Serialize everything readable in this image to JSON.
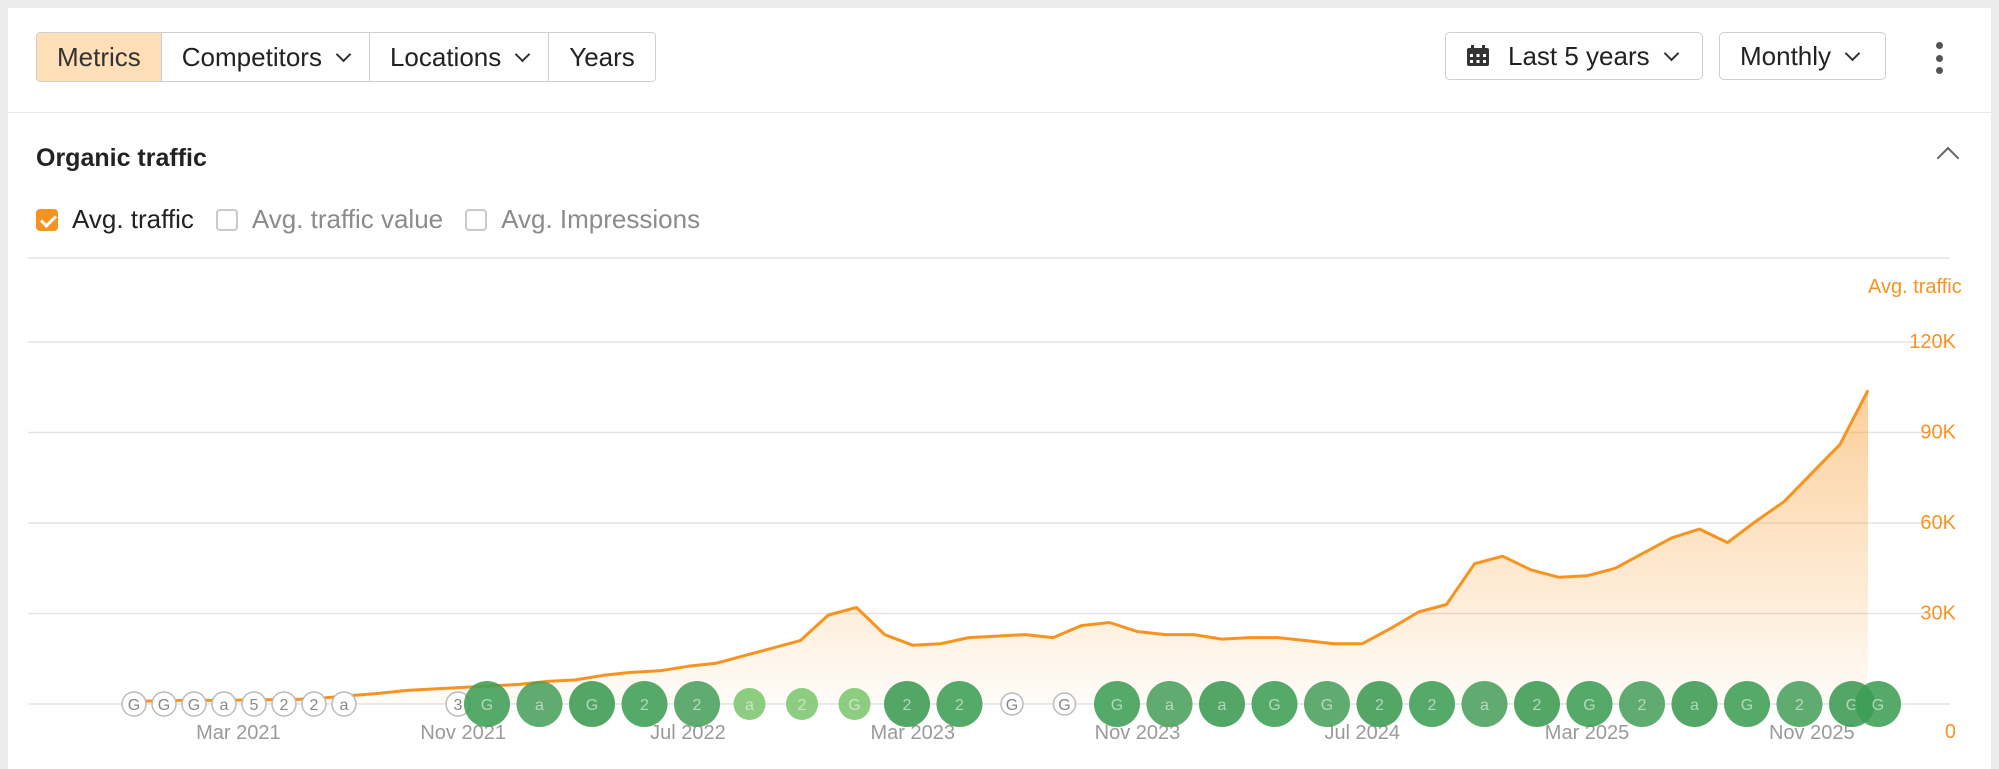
{
  "toolbar": {
    "tabs": [
      {
        "label": "Metrics",
        "active": true
      },
      {
        "label": "Competitors",
        "dropdown": true
      },
      {
        "label": "Locations",
        "dropdown": true
      },
      {
        "label": "Years",
        "dropdown": false
      }
    ],
    "range_label": "Last 5 years",
    "interval_label": "Monthly",
    "range_icon": "calendar-icon",
    "more_icon": "kebab-menu-icon"
  },
  "card": {
    "title": "Organic traffic",
    "collapse_icon": "chevron-up-icon",
    "metrics": [
      {
        "label": "Avg. traffic",
        "checked": true
      },
      {
        "label": "Avg. traffic value",
        "checked": false
      },
      {
        "label": "Avg. Impressions",
        "checked": false
      }
    ]
  },
  "colors": {
    "accent": "#f7931e",
    "active_tab": "#fedfb8",
    "marker_green": "#3e9e55",
    "marker_light_green": "#7cc66f"
  },
  "chart_data": {
    "type": "area",
    "ylabel": "Avg. traffic",
    "ylim": [
      0,
      120000
    ],
    "yticks": [
      0,
      30000,
      60000,
      90000,
      120000
    ],
    "ytick_labels": [
      "0",
      "30K",
      "60K",
      "90K",
      "120K"
    ],
    "x_start": "2020-11",
    "x_end": "2025-11",
    "xtick_labels": [
      "Mar 2021",
      "Nov 2021",
      "Jul 2022",
      "Mar 2023",
      "Nov 2023",
      "Jul 2024",
      "Mar 2025",
      "Nov 2025"
    ],
    "grid": true,
    "series": [
      {
        "name": "Avg. traffic",
        "values": [
          1000,
          1000,
          1200,
          1200,
          1300,
          1400,
          1500,
          2000,
          2800,
          3500,
          4500,
          5000,
          5500,
          6000,
          6500,
          7500,
          8000,
          9500,
          10500,
          11000,
          12500,
          13500,
          16000,
          18500,
          21000,
          29500,
          32000,
          23000,
          19500,
          20000,
          22000,
          22500,
          23000,
          22000,
          26000,
          27000,
          24000,
          23000,
          23000,
          21500,
          22000,
          22000,
          21000,
          20000,
          20000,
          25000,
          30500,
          33000,
          46500,
          49000,
          44500,
          42000,
          42500,
          45000,
          50000,
          55000,
          58000,
          53500,
          60500,
          67000,
          76500,
          86000,
          104000
        ]
      }
    ],
    "event_markers": {
      "row_value": 0,
      "labels": [
        "G",
        "G",
        "G",
        "a",
        "5",
        "2",
        "2",
        "a",
        "3",
        "G",
        "a",
        "G",
        "2",
        "2",
        "a",
        "2",
        "G",
        "2",
        "2",
        "G",
        "G",
        "G",
        "a",
        "a",
        "G",
        "G",
        "2",
        "2",
        "a",
        "2",
        "G",
        "2",
        "a",
        "G",
        "2",
        "G",
        "G"
      ]
    }
  }
}
